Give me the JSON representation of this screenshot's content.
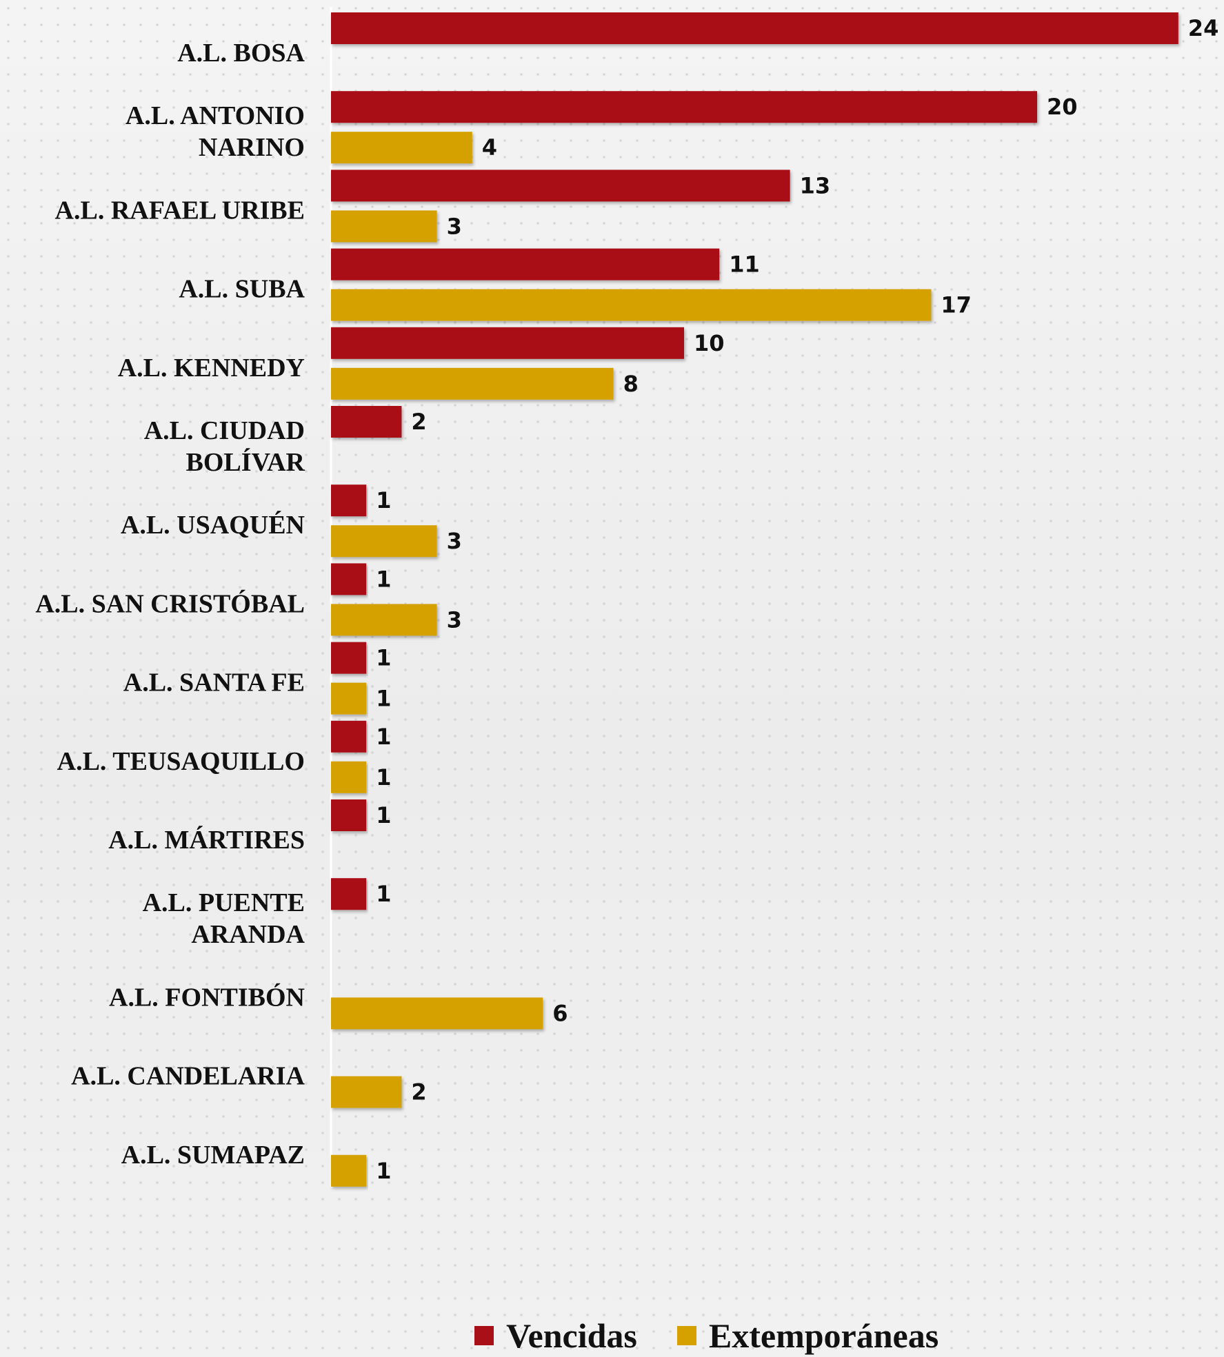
{
  "chart_data": {
    "type": "bar",
    "orientation": "horizontal",
    "categories": [
      "A.L. BOSA",
      "A.L. ANTONIO NARINO",
      "A.L. RAFAEL URIBE",
      "A.L. SUBA",
      "A.L.  KENNEDY",
      "A.L. CIUDAD BOLÍVAR",
      "A.L. USAQUÉN",
      "A.L. SAN CRISTÓBAL",
      "A.L. SANTA FE",
      "A.L. TEUSAQUILLO",
      "A.L. MÁRTIRES",
      "A.L. PUENTE ARANDA",
      "A.L. FONTIBÓN",
      "A.L. CANDELARIA",
      "A.L. SUMAPAZ"
    ],
    "category_lines": [
      [
        "A.L. BOSA"
      ],
      [
        "A.L. ANTONIO",
        "NARINO"
      ],
      [
        "A.L. RAFAEL URIBE"
      ],
      [
        "A.L. SUBA"
      ],
      [
        "A.L.  KENNEDY"
      ],
      [
        "A.L. CIUDAD",
        "BOLÍVAR"
      ],
      [
        "A.L. USAQUÉN"
      ],
      [
        "A.L. SAN CRISTÓBAL"
      ],
      [
        "A.L. SANTA FE"
      ],
      [
        "A.L. TEUSAQUILLO"
      ],
      [
        "A.L. MÁRTIRES"
      ],
      [
        "A.L. PUENTE",
        "ARANDA"
      ],
      [
        "A.L. FONTIBÓN"
      ],
      [
        "A.L. CANDELARIA"
      ],
      [
        "A.L. SUMAPAZ"
      ]
    ],
    "series": [
      {
        "name": "Vencidas",
        "color": "#a90f16",
        "values": [
          24,
          20,
          13,
          11,
          10,
          2,
          1,
          1,
          1,
          1,
          1,
          1,
          null,
          null,
          null
        ]
      },
      {
        "name": "Extemporáneas",
        "color": "#d4a100",
        "values": [
          null,
          4,
          3,
          17,
          8,
          null,
          3,
          3,
          1,
          1,
          null,
          null,
          6,
          2,
          1
        ]
      }
    ],
    "xlim": [
      0,
      24
    ],
    "grid": false,
    "legend_position": "bottom"
  },
  "legend": {
    "items": [
      {
        "label": "Vencidas",
        "color": "#a90f16"
      },
      {
        "label": "Extemporáneas",
        "color": "#d4a100"
      }
    ]
  }
}
